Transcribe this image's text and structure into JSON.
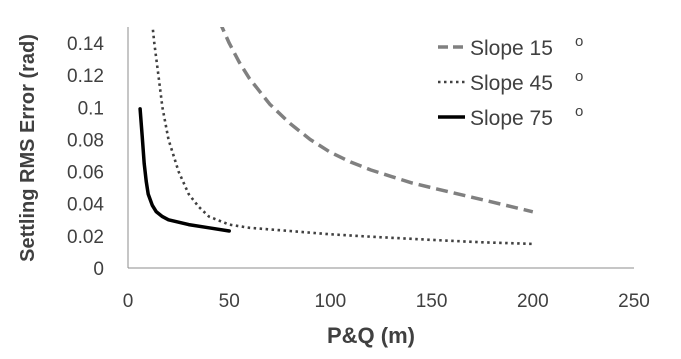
{
  "chart_data": {
    "type": "line",
    "title": "",
    "xlabel": "P&Q (m)",
    "ylabel": "Settling RMS Error (rad)",
    "xlim": [
      0,
      250
    ],
    "ylim": [
      0,
      0.15
    ],
    "x_ticks": [
      0,
      50,
      100,
      150,
      200,
      250
    ],
    "y_ticks": [
      0,
      0.02,
      0.04,
      0.06,
      0.08,
      0.1,
      0.12,
      0.14
    ],
    "x_tick_labels": [
      "0",
      "50",
      "100",
      "150",
      "200",
      "250"
    ],
    "y_tick_labels": [
      "0",
      "0.02",
      "0.04",
      "0.06",
      "0.08",
      "0.1",
      "0.12",
      "0.14"
    ],
    "grid": false,
    "legend_position": "top-right",
    "series": [
      {
        "name": "Slope 15",
        "legend_label": "Slope 15",
        "legend_superscript": "o",
        "line_style": "dashed",
        "color": "#808080",
        "points": [
          [
            45,
            0.154
          ],
          [
            50,
            0.14
          ],
          [
            55,
            0.128
          ],
          [
            60,
            0.118
          ],
          [
            70,
            0.102
          ],
          [
            80,
            0.09
          ],
          [
            90,
            0.08
          ],
          [
            100,
            0.072
          ],
          [
            110,
            0.066
          ],
          [
            120,
            0.061
          ],
          [
            130,
            0.057
          ],
          [
            140,
            0.053
          ],
          [
            150,
            0.05
          ],
          [
            160,
            0.047
          ],
          [
            170,
            0.044
          ],
          [
            180,
            0.041
          ],
          [
            190,
            0.038
          ],
          [
            200,
            0.035
          ]
        ]
      },
      {
        "name": "Slope 45",
        "legend_label": "Slope 45",
        "legend_superscript": "o",
        "line_style": "dotted",
        "color": "#404040",
        "points": [
          [
            12,
            0.152
          ],
          [
            13,
            0.14
          ],
          [
            15,
            0.12
          ],
          [
            17,
            0.1
          ],
          [
            20,
            0.08
          ],
          [
            25,
            0.06
          ],
          [
            30,
            0.046
          ],
          [
            35,
            0.038
          ],
          [
            40,
            0.032
          ],
          [
            50,
            0.027
          ],
          [
            60,
            0.025
          ],
          [
            70,
            0.024
          ],
          [
            80,
            0.023
          ],
          [
            100,
            0.021
          ],
          [
            120,
            0.0195
          ],
          [
            150,
            0.0175
          ],
          [
            175,
            0.016
          ],
          [
            200,
            0.015
          ]
        ]
      },
      {
        "name": "Slope 75",
        "legend_label": "Slope 75",
        "legend_superscript": "o",
        "line_style": "solid",
        "color": "#000000",
        "points": [
          [
            6,
            0.099
          ],
          [
            7,
            0.082
          ],
          [
            8,
            0.065
          ],
          [
            9,
            0.054
          ],
          [
            10,
            0.046
          ],
          [
            12,
            0.039
          ],
          [
            14,
            0.035
          ],
          [
            17,
            0.032
          ],
          [
            20,
            0.03
          ],
          [
            25,
            0.0285
          ],
          [
            30,
            0.027
          ],
          [
            40,
            0.025
          ],
          [
            50,
            0.023
          ]
        ]
      }
    ]
  }
}
